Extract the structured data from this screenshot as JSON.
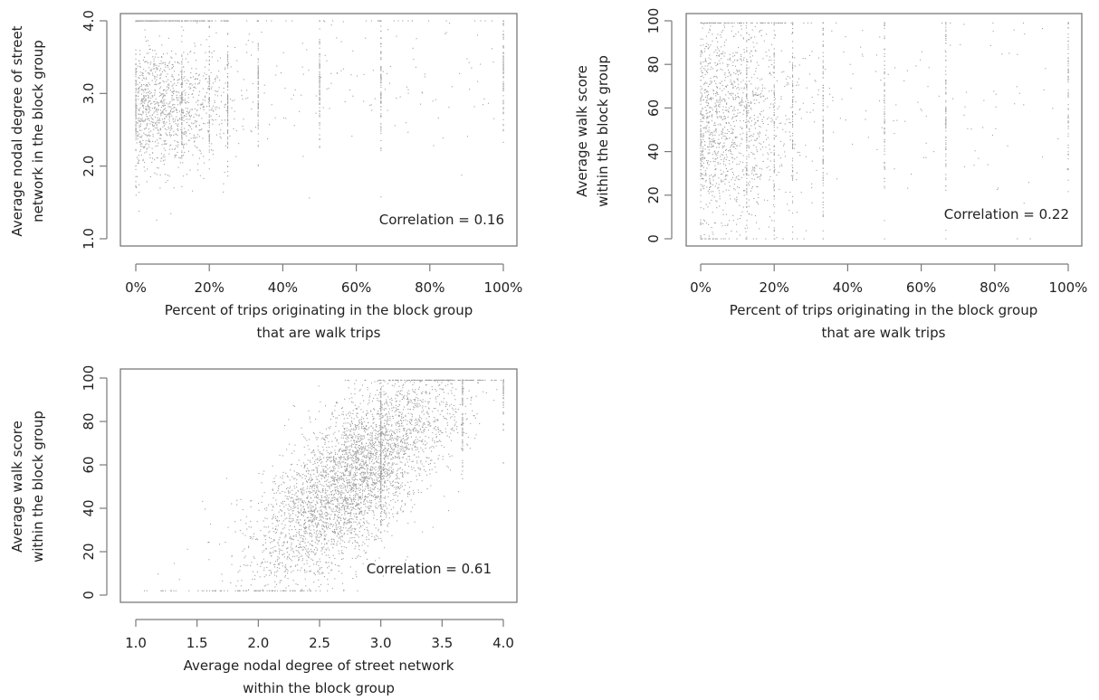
{
  "colors": {
    "points": "#9e9e9e",
    "frame": "#7a7a7a",
    "text": "#222222"
  },
  "chart_data": [
    {
      "type": "scatter",
      "title": "",
      "xlabel": [
        "Percent of trips originating in the block group",
        "that are walk trips"
      ],
      "ylabel": [
        "Average nodal degree of street",
        "network in the block group"
      ],
      "xlim": [
        0,
        1
      ],
      "ylim": [
        1,
        4
      ],
      "xticks": [
        0,
        0.2,
        0.4,
        0.6,
        0.8,
        1
      ],
      "xtick_labels": [
        "0%",
        "20%",
        "40%",
        "60%",
        "80%",
        "100%"
      ],
      "yticks": [
        1,
        2,
        3,
        4
      ],
      "ytick_labels": [
        "1.0",
        "2.0",
        "3.0",
        "4.0"
      ],
      "annotation": "Correlation = 0.16",
      "grid": false,
      "approx_distribution": {
        "x_mean": 0.1,
        "y_mean": 2.85,
        "correlation": 0.16,
        "x_vertical_lines": [
          0,
          0.125,
          0.2,
          0.25,
          0.333,
          0.5,
          0.667,
          1
        ],
        "n_points": 2200
      }
    },
    {
      "type": "scatter",
      "title": "",
      "xlabel": [
        "Percent of trips originating in the block group",
        "that are walk trips"
      ],
      "ylabel": [
        "Average walk score",
        "within the block group"
      ],
      "xlim": [
        0,
        1
      ],
      "ylim": [
        0,
        100
      ],
      "xticks": [
        0,
        0.2,
        0.4,
        0.6,
        0.8,
        1
      ],
      "xtick_labels": [
        "0%",
        "20%",
        "40%",
        "60%",
        "80%",
        "100%"
      ],
      "yticks": [
        0,
        20,
        40,
        60,
        80,
        100
      ],
      "ytick_labels": [
        "0",
        "20",
        "40",
        "60",
        "80",
        "100"
      ],
      "annotation": "Correlation = 0.22",
      "grid": false,
      "approx_distribution": {
        "x_mean": 0.1,
        "y_mean": 55,
        "correlation": 0.22,
        "x_vertical_lines": [
          0,
          0.125,
          0.2,
          0.25,
          0.333,
          0.5,
          0.667,
          1
        ],
        "n_points": 2200
      }
    },
    {
      "type": "scatter",
      "title": "",
      "xlabel": [
        "Average nodal degree of street network",
        "within the block group"
      ],
      "ylabel": [
        "Average walk score",
        "within the block group"
      ],
      "xlim": [
        1,
        4
      ],
      "ylim": [
        0,
        100
      ],
      "xticks": [
        1,
        1.5,
        2,
        2.5,
        3,
        3.5,
        4
      ],
      "xtick_labels": [
        "1.0",
        "1.5",
        "2.0",
        "2.5",
        "3.0",
        "3.5",
        "4.0"
      ],
      "yticks": [
        0,
        20,
        40,
        60,
        80,
        100
      ],
      "ytick_labels": [
        "0",
        "20",
        "40",
        "60",
        "80",
        "100"
      ],
      "annotation": "Correlation = 0.61",
      "grid": false,
      "approx_distribution": {
        "x_mean": 2.85,
        "y_mean": 55,
        "correlation": 0.61,
        "x_vertical_lines": [
          3,
          3.667,
          4
        ],
        "n_points": 4500
      }
    }
  ]
}
